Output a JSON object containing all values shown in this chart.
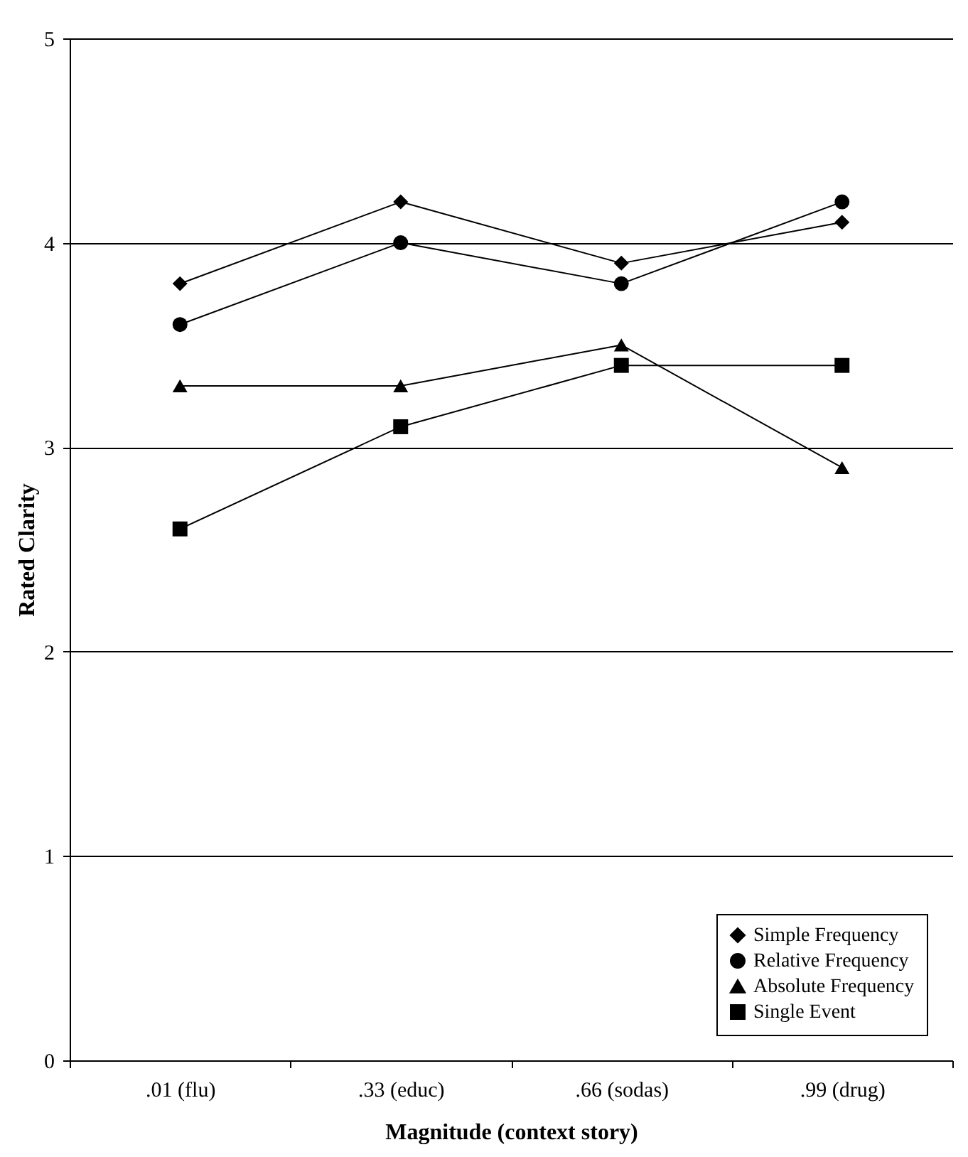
{
  "chart_data": {
    "type": "line",
    "xlabel": "Magnitude (context story)",
    "ylabel": "Rated Clarity",
    "categories": [
      ".01 (flu)",
      ".33 (educ)",
      ".66 (sodas)",
      ".99 (drug)"
    ],
    "ylim": [
      0,
      5
    ],
    "yticks": [
      0,
      1,
      2,
      3,
      4,
      5
    ],
    "grid": "y",
    "legend": "bottom right",
    "series": [
      {
        "name": "Simple Frequency",
        "color": "#000000",
        "marker": "diamond",
        "values": [
          3.8,
          4.2,
          3.9,
          4.1
        ]
      },
      {
        "name": "Relative Frequency",
        "color": "#000000",
        "marker": "circle",
        "values": [
          3.6,
          4.0,
          3.8,
          4.2
        ]
      },
      {
        "name": "Absolute Frequency",
        "color": "#000000",
        "marker": "triangle",
        "values": [
          3.3,
          3.3,
          3.5,
          2.9
        ]
      },
      {
        "name": "Single Event",
        "color": "#000000",
        "marker": "square",
        "values": [
          2.6,
          3.1,
          3.4,
          3.4
        ]
      }
    ]
  }
}
